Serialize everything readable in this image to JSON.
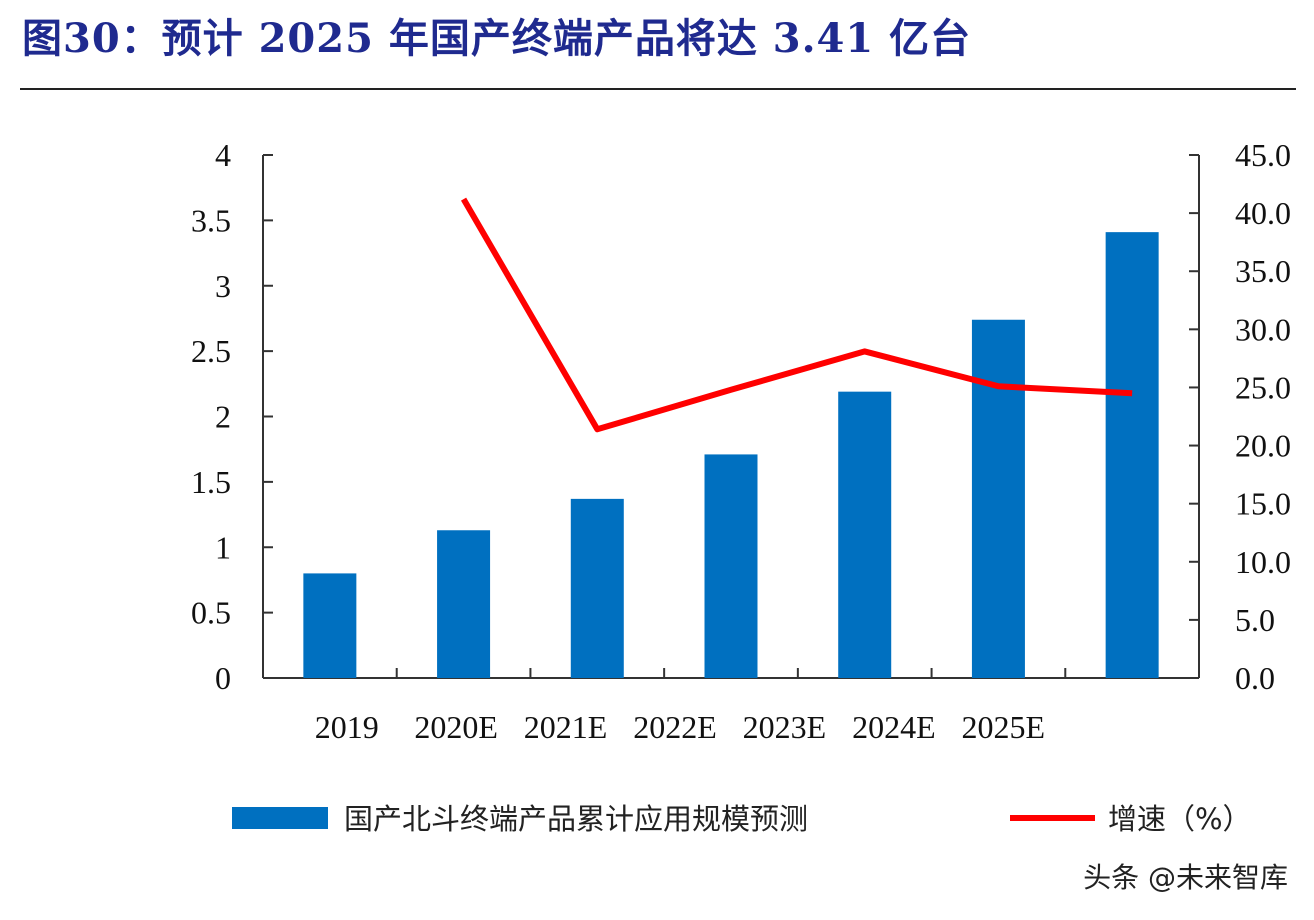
{
  "title": "图30：预计 2025 年国产终端产品将达 3.41 亿台",
  "watermark": "头条 @未来智库",
  "colors": {
    "bar": "#0070c0",
    "line": "#ff0000",
    "title": "#1f2a8f"
  },
  "chart_data": {
    "type": "bar",
    "title": "图30：预计 2025 年国产终端产品将达 3.41 亿台",
    "categories": [
      "2019",
      "2020E",
      "2021E",
      "2022E",
      "2023E",
      "2024E",
      "2025E"
    ],
    "series": [
      {
        "name": "国产北斗终端产品累计应用规模预测",
        "type": "bar",
        "axis": "left",
        "values": [
          0.8,
          1.13,
          1.37,
          1.71,
          2.19,
          2.74,
          3.41
        ]
      },
      {
        "name": "增速（%）",
        "type": "line",
        "axis": "right",
        "values": [
          null,
          41.2,
          21.4,
          24.8,
          28.1,
          25.1,
          24.5
        ]
      }
    ],
    "y_left": {
      "ylim": [
        0,
        4
      ],
      "ticks": [
        0,
        0.5,
        1,
        1.5,
        2,
        2.5,
        3,
        3.5,
        4
      ],
      "tick_labels": [
        "0",
        "0.5",
        "1",
        "1.5",
        "2",
        "2.5",
        "3",
        "3.5",
        "4"
      ]
    },
    "y_right": {
      "ylim": [
        0,
        45
      ],
      "ticks": [
        0,
        5,
        10,
        15,
        20,
        25,
        30,
        35,
        40,
        45
      ],
      "tick_labels": [
        "0.0",
        "5.0",
        "10.0",
        "15.0",
        "20.0",
        "25.0",
        "30.0",
        "35.0",
        "40.0",
        "45.0"
      ]
    },
    "grid": false,
    "legend": "bottom"
  }
}
